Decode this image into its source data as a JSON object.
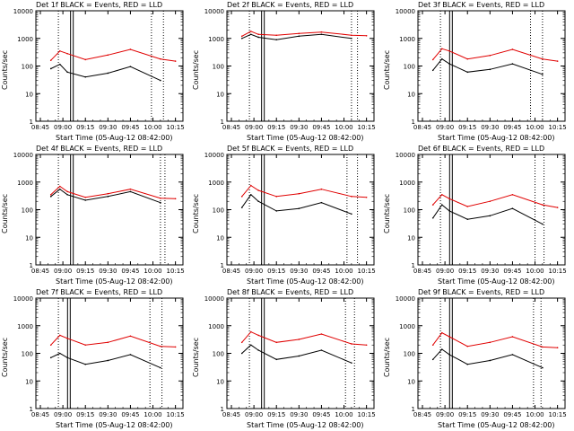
{
  "colors": {
    "events": "#000000",
    "lld": "#e00000",
    "axes": "#000000"
  },
  "common": {
    "ylabel": "Counts/sec",
    "xlabel": "Start Time (05-Aug-12 08:42:00)",
    "xticks": [
      "08:45",
      "09:00",
      "09:15",
      "09:30",
      "09:45",
      "10:00",
      "10:15"
    ],
    "yticks": [
      "1",
      "10",
      "100",
      "1000",
      "10000"
    ]
  },
  "chart_data": [
    {
      "type": "line",
      "title": "Det 1f BLACK = Events, RED = LLD",
      "xlabel": "Start Time (05-Aug-12 08:42:00)",
      "ylabel": "Counts/sec",
      "xlim": [
        "08:42",
        "10:20"
      ],
      "ylim": [
        1,
        10000
      ],
      "yscale": "log",
      "x": [
        "08:52",
        "08:58",
        "09:03",
        "09:15",
        "09:30",
        "09:45",
        "10:05",
        "10:15"
      ],
      "series": [
        {
          "name": "RED = LLD",
          "values": [
            160,
            350,
            280,
            170,
            250,
            400,
            180,
            150
          ]
        },
        {
          "name": "BLACK = Events",
          "values": [
            80,
            115,
            60,
            40,
            55,
            95,
            30,
            null
          ]
        }
      ],
      "vlines_dotted": [
        "08:57",
        "09:59",
        "10:07"
      ],
      "vlines_solid": [
        "09:06"
      ]
    },
    {
      "type": "line",
      "title": "Det 2f BLACK = Events, RED = LLD",
      "xlabel": "Start Time (05-Aug-12 08:42:00)",
      "ylabel": "Counts/sec",
      "xlim": [
        "08:42",
        "10:20"
      ],
      "ylim": [
        1,
        10000
      ],
      "yscale": "log",
      "x": [
        "08:52",
        "08:58",
        "09:03",
        "09:15",
        "09:30",
        "09:45",
        "10:05",
        "10:15"
      ],
      "series": [
        {
          "name": "RED = LLD",
          "values": [
            1200,
            1800,
            1400,
            1300,
            1500,
            1700,
            1300,
            1250
          ]
        },
        {
          "name": "BLACK = Events",
          "values": [
            1000,
            1400,
            1100,
            900,
            1200,
            1400,
            1000,
            null
          ]
        }
      ],
      "vlines_dotted": [
        "08:57",
        "10:05",
        "10:09"
      ],
      "vlines_solid": [
        "09:06"
      ]
    },
    {
      "type": "line",
      "title": "Det 3f BLACK = Events, RED = LLD",
      "xlabel": "Start Time (05-Aug-12 08:42:00)",
      "ylabel": "Counts/sec",
      "xlim": [
        "08:42",
        "10:20"
      ],
      "ylim": [
        1,
        10000
      ],
      "yscale": "log",
      "x": [
        "08:52",
        "08:58",
        "09:03",
        "09:15",
        "09:30",
        "09:45",
        "10:05",
        "10:15"
      ],
      "series": [
        {
          "name": "RED = LLD",
          "values": [
            170,
            420,
            350,
            180,
            240,
            400,
            180,
            150
          ]
        },
        {
          "name": "BLACK = Events",
          "values": [
            70,
            180,
            120,
            60,
            75,
            120,
            50,
            null
          ]
        }
      ],
      "vlines_dotted": [
        "08:57",
        "09:57",
        "10:05"
      ],
      "vlines_solid": [
        "09:04"
      ]
    },
    {
      "type": "line",
      "title": "Det 4f BLACK = Events, RED = LLD",
      "xlabel": "Start Time (05-Aug-12 08:42:00)",
      "ylabel": "Counts/sec",
      "xlim": [
        "08:42",
        "10:20"
      ],
      "ylim": [
        1,
        10000
      ],
      "yscale": "log",
      "x": [
        "08:52",
        "08:58",
        "09:03",
        "09:15",
        "09:30",
        "09:45",
        "10:05",
        "10:15"
      ],
      "series": [
        {
          "name": "RED = LLD",
          "values": [
            350,
            700,
            450,
            280,
            380,
            550,
            260,
            250
          ]
        },
        {
          "name": "BLACK = Events",
          "values": [
            300,
            550,
            350,
            220,
            300,
            450,
            180,
            null
          ]
        }
      ],
      "vlines_dotted": [
        "08:57",
        "10:05",
        "10:08"
      ],
      "vlines_solid": [
        "09:06"
      ]
    },
    {
      "type": "line",
      "title": "Det 5f BLACK = Events, RED = LLD",
      "xlabel": "Start Time (05-Aug-12 08:42:00)",
      "ylabel": "Counts/sec",
      "xlim": [
        "08:42",
        "10:20"
      ],
      "ylim": [
        1,
        10000
      ],
      "yscale": "log",
      "x": [
        "08:52",
        "08:58",
        "09:03",
        "09:15",
        "09:30",
        "09:45",
        "10:05",
        "10:15"
      ],
      "series": [
        {
          "name": "RED = LLD",
          "values": [
            300,
            750,
            500,
            300,
            380,
            550,
            300,
            280
          ]
        },
        {
          "name": "BLACK = Events",
          "values": [
            120,
            350,
            200,
            90,
            110,
            180,
            70,
            null
          ]
        }
      ],
      "vlines_dotted": [
        "08:57",
        "10:02",
        "10:09"
      ],
      "vlines_solid": [
        "09:06"
      ]
    },
    {
      "type": "line",
      "title": "Det 6f BLACK = Events, RED = LLD",
      "xlabel": "Start Time (05-Aug-12 08:42:00)",
      "ylabel": "Counts/sec",
      "xlim": [
        "08:42",
        "10:20"
      ],
      "ylim": [
        1,
        10000
      ],
      "yscale": "log",
      "x": [
        "08:52",
        "08:58",
        "09:03",
        "09:15",
        "09:30",
        "09:45",
        "10:05",
        "10:15"
      ],
      "series": [
        {
          "name": "RED = LLD",
          "values": [
            150,
            350,
            250,
            130,
            200,
            350,
            150,
            120
          ]
        },
        {
          "name": "BLACK = Events",
          "values": [
            50,
            150,
            90,
            45,
            60,
            110,
            30,
            null
          ]
        }
      ],
      "vlines_dotted": [
        "08:57",
        "10:00",
        "10:06"
      ],
      "vlines_solid": [
        "09:04"
      ]
    },
    {
      "type": "line",
      "title": "Det 7f BLACK = Events, RED = LLD",
      "xlabel": "Start Time (05-Aug-12 08:42:00)",
      "ylabel": "Counts/sec",
      "xlim": [
        "08:42",
        "10:20"
      ],
      "ylim": [
        1,
        10000
      ],
      "yscale": "log",
      "x": [
        "08:52",
        "08:58",
        "09:03",
        "09:15",
        "09:30",
        "09:45",
        "10:05",
        "10:15"
      ],
      "series": [
        {
          "name": "RED = LLD",
          "values": [
            200,
            450,
            350,
            200,
            250,
            420,
            180,
            170
          ]
        },
        {
          "name": "BLACK = Events",
          "values": [
            70,
            100,
            70,
            40,
            55,
            90,
            30,
            null
          ]
        }
      ],
      "vlines_dotted": [
        "08:57",
        "09:58",
        "10:06"
      ],
      "vlines_solid": [
        "09:04"
      ]
    },
    {
      "type": "line",
      "title": "Det 8f BLACK = Events, RED = LLD",
      "xlabel": "Start Time (05-Aug-12 08:42:00)",
      "ylabel": "Counts/sec",
      "xlim": [
        "08:42",
        "10:20"
      ],
      "ylim": [
        1,
        10000
      ],
      "yscale": "log",
      "x": [
        "08:52",
        "08:58",
        "09:03",
        "09:15",
        "09:30",
        "09:45",
        "10:05",
        "10:15"
      ],
      "series": [
        {
          "name": "RED = LLD",
          "values": [
            250,
            600,
            450,
            250,
            320,
            500,
            220,
            200
          ]
        },
        {
          "name": "BLACK = Events",
          "values": [
            100,
            200,
            130,
            60,
            80,
            130,
            45,
            null
          ]
        }
      ],
      "vlines_dotted": [
        "08:57",
        "10:01",
        "10:07"
      ],
      "vlines_solid": [
        "09:06"
      ]
    },
    {
      "type": "line",
      "title": "Det 9f BLACK = Events, RED = LLD",
      "xlabel": "Start Time (05-Aug-12 08:42:00)",
      "ylabel": "Counts/sec",
      "xlim": [
        "08:42",
        "10:20"
      ],
      "ylim": [
        1,
        10000
      ],
      "yscale": "log",
      "x": [
        "08:52",
        "08:58",
        "09:03",
        "09:15",
        "09:30",
        "09:45",
        "10:05",
        "10:15"
      ],
      "series": [
        {
          "name": "RED = LLD",
          "values": [
            200,
            550,
            400,
            180,
            250,
            400,
            170,
            160
          ]
        },
        {
          "name": "BLACK = Events",
          "values": [
            60,
            140,
            90,
            40,
            55,
            90,
            30,
            null
          ]
        }
      ],
      "vlines_dotted": [
        "08:57",
        "09:59",
        "10:04"
      ],
      "vlines_solid": [
        "09:04"
      ]
    }
  ]
}
